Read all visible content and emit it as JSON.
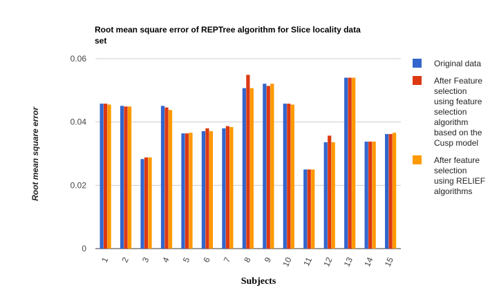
{
  "chart_data": {
    "type": "bar",
    "title_lines": [
      "Root mean square error of REPTree algorithm for Slice locality data",
      "set"
    ],
    "xlabel": "Subjects",
    "ylabel": "Root mean square error",
    "ylim": [
      0,
      0.06
    ],
    "yticks": [
      "0",
      "0.02",
      "0.04",
      "0.06"
    ],
    "ytick_values": [
      0,
      0.02,
      0.04,
      0.06
    ],
    "grid": true,
    "legend_position": "right",
    "categories": [
      "1",
      "2",
      "3",
      "4",
      "5",
      "6",
      "7",
      "8",
      "9",
      "10",
      "11",
      "12",
      "13",
      "14",
      "15"
    ],
    "series": [
      {
        "name_lines": [
          "Original data"
        ],
        "color": "#3366cc",
        "values": [
          0.0458,
          0.0451,
          0.0283,
          0.0451,
          0.0364,
          0.0371,
          0.038,
          0.0507,
          0.0521,
          0.0458,
          0.025,
          0.0336,
          0.054,
          0.0338,
          0.0362
        ]
      },
      {
        "name_lines": [
          "After Feature",
          "selection",
          "using feature",
          "selection",
          "algorithm",
          "based on the",
          "Cusp model"
        ],
        "color": "#dc3912",
        "values": [
          0.0458,
          0.0449,
          0.0288,
          0.0446,
          0.0364,
          0.038,
          0.0387,
          0.0549,
          0.0514,
          0.0458,
          0.025,
          0.0357,
          0.054,
          0.0338,
          0.0362
        ]
      },
      {
        "name_lines": [
          "After feature",
          "selection",
          "using RELIEF",
          "algorithms"
        ],
        "color": "#ff9900",
        "values": [
          0.0455,
          0.0449,
          0.0288,
          0.0438,
          0.0366,
          0.0371,
          0.0384,
          0.0507,
          0.0521,
          0.0455,
          0.025,
          0.0336,
          0.054,
          0.0338,
          0.0366
        ]
      }
    ]
  }
}
